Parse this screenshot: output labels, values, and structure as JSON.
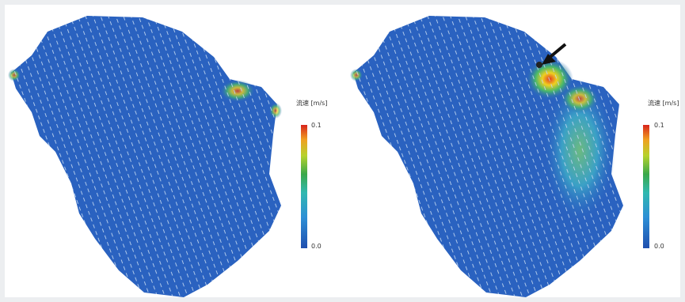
{
  "panels": [
    {
      "colorbar": {
        "title": "流速 [m/s]",
        "max_label": "0.1",
        "min_label": "0.0"
      }
    },
    {
      "colorbar": {
        "title": "流速 [m/s]",
        "max_label": "0.1",
        "min_label": "0.0"
      }
    }
  ]
}
